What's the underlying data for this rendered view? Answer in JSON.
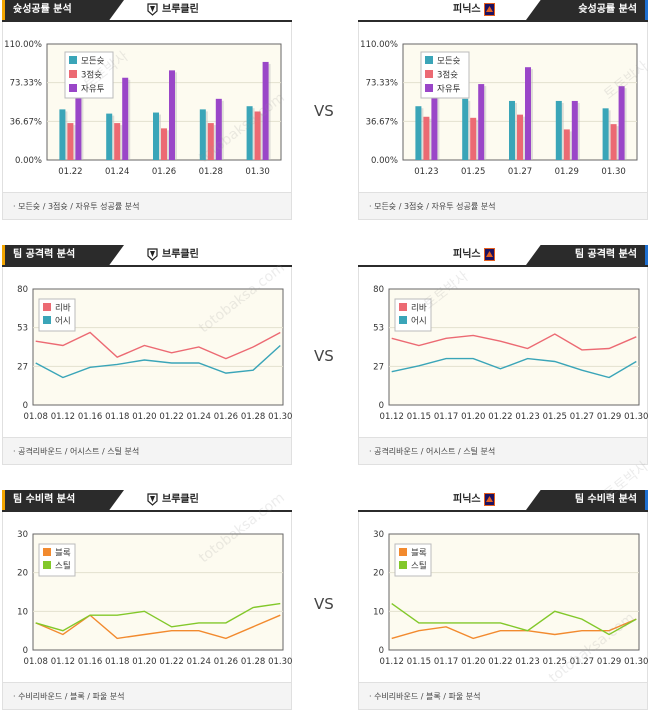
{
  "vs_label": "VS",
  "watermark": [
    "토토박사",
    "totobaksa.com"
  ],
  "colors": {
    "all_shot": "#3aa5b8",
    "three_pt": "#ec6a73",
    "free_throw": "#9a46c8",
    "rebound": "#ec6a73",
    "assist": "#3aa5b8",
    "block": "#f28a2e",
    "steal": "#82c82a",
    "left_accent": "#f2a500",
    "right_accent": "#1e6fd0"
  },
  "sections": [
    {
      "id": "shooting",
      "title_left": "슛성공률 분석",
      "title_right": "슛성공률 분석",
      "team_left": "브루클린",
      "team_right": "피닉스",
      "footer_left": "· 모든슛 / 3점슛 / 자유투 성공률 분석",
      "footer_right": "· 모든슛 / 3점슛 / 자유투 성공률 분석"
    },
    {
      "id": "offense",
      "title_left": "팀 공격력 분석",
      "title_right": "팀 공격력 분석",
      "team_left": "브루클린",
      "team_right": "피닉스",
      "footer_left": "· 공격리바운드 / 어시스트 / 스틸 분석",
      "footer_right": "· 공격리바운드 / 어시스트 / 스틸 분석"
    },
    {
      "id": "defense",
      "title_left": "팀 수비력 분석",
      "title_right": "팀 수비력 분석",
      "team_left": "브루클린",
      "team_right": "피닉스",
      "footer_left": "· 수비리바운드 / 블록 / 파울 분석",
      "footer_right": "· 수비리바운드 / 블록 / 파울 분석"
    }
  ],
  "chart_data": [
    {
      "type": "bar",
      "team": "브루클린",
      "categories": [
        "01.22",
        "01.24",
        "01.26",
        "01.28",
        "01.30"
      ],
      "ylim": [
        0,
        1.1
      ],
      "yticks": [
        "110.00%",
        "73.33%",
        "36.67%",
        "0.00%"
      ],
      "legend_placement": "top-left",
      "series": [
        {
          "name": "모든슛",
          "values": [
            0.48,
            0.44,
            0.45,
            0.48,
            0.51
          ]
        },
        {
          "name": "3점슛",
          "values": [
            0.35,
            0.35,
            0.3,
            0.35,
            0.46
          ]
        },
        {
          "name": "자유투",
          "values": [
            0.84,
            0.78,
            0.85,
            0.58,
            0.93
          ]
        }
      ]
    },
    {
      "type": "bar",
      "team": "피닉스",
      "categories": [
        "01.23",
        "01.25",
        "01.27",
        "01.29",
        "01.30"
      ],
      "ylim": [
        0,
        1.1
      ],
      "yticks": [
        "110.00%",
        "73.33%",
        "36.67%",
        "0.00%"
      ],
      "legend_placement": "top-left",
      "series": [
        {
          "name": "모든슛",
          "values": [
            0.51,
            0.58,
            0.56,
            0.56,
            0.49
          ]
        },
        {
          "name": "3점슛",
          "values": [
            0.41,
            0.4,
            0.43,
            0.29,
            0.34
          ]
        },
        {
          "name": "자유투",
          "values": [
            0.83,
            0.72,
            0.88,
            0.56,
            0.7
          ]
        }
      ]
    },
    {
      "type": "line",
      "team": "브루클린",
      "categories": [
        "01.08",
        "01.12",
        "01.16",
        "01.18",
        "01.20",
        "01.22",
        "01.24",
        "01.26",
        "01.28",
        "01.30"
      ],
      "ylim": [
        0,
        80
      ],
      "yticks": [
        80,
        53,
        27,
        0
      ],
      "legend_placement": "top-left",
      "series": [
        {
          "name": "리바",
          "values": [
            44,
            41,
            50,
            33,
            41,
            36,
            40,
            32,
            40,
            50
          ]
        },
        {
          "name": "어시",
          "values": [
            29,
            19,
            26,
            28,
            31,
            29,
            29,
            22,
            24,
            41
          ]
        }
      ]
    },
    {
      "type": "line",
      "team": "피닉스",
      "categories": [
        "01.12",
        "01.15",
        "01.17",
        "01.20",
        "01.22",
        "01.23",
        "01.25",
        "01.27",
        "01.29",
        "01.30"
      ],
      "ylim": [
        0,
        80
      ],
      "yticks": [
        80,
        53,
        27,
        0
      ],
      "legend_placement": "top-left",
      "series": [
        {
          "name": "리바",
          "values": [
            46,
            41,
            46,
            48,
            44,
            39,
            49,
            38,
            39,
            47
          ]
        },
        {
          "name": "어시",
          "values": [
            23,
            27,
            32,
            32,
            25,
            32,
            30,
            24,
            19,
            30
          ]
        }
      ]
    },
    {
      "type": "line",
      "team": "브루클린",
      "categories": [
        "01.08",
        "01.12",
        "01.16",
        "01.18",
        "01.20",
        "01.22",
        "01.24",
        "01.26",
        "01.28",
        "01.30"
      ],
      "ylim": [
        0,
        30
      ],
      "yticks": [
        30,
        20,
        10,
        0
      ],
      "legend_placement": "top-left",
      "series": [
        {
          "name": "블록",
          "values": [
            7,
            4,
            9,
            3,
            4,
            5,
            5,
            3,
            6,
            9
          ]
        },
        {
          "name": "스틸",
          "values": [
            7,
            5,
            9,
            9,
            10,
            6,
            7,
            7,
            11,
            12
          ]
        }
      ]
    },
    {
      "type": "line",
      "team": "피닉스",
      "categories": [
        "01.12",
        "01.15",
        "01.17",
        "01.20",
        "01.22",
        "01.23",
        "01.25",
        "01.27",
        "01.29",
        "01.30"
      ],
      "ylim": [
        0,
        30
      ],
      "yticks": [
        30,
        20,
        10,
        0
      ],
      "legend_placement": "top-left",
      "series": [
        {
          "name": "블록",
          "values": [
            3,
            5,
            6,
            3,
            5,
            5,
            4,
            5,
            5,
            8
          ]
        },
        {
          "name": "스틸",
          "values": [
            12,
            7,
            7,
            7,
            7,
            5,
            10,
            8,
            4,
            8
          ]
        }
      ]
    }
  ]
}
